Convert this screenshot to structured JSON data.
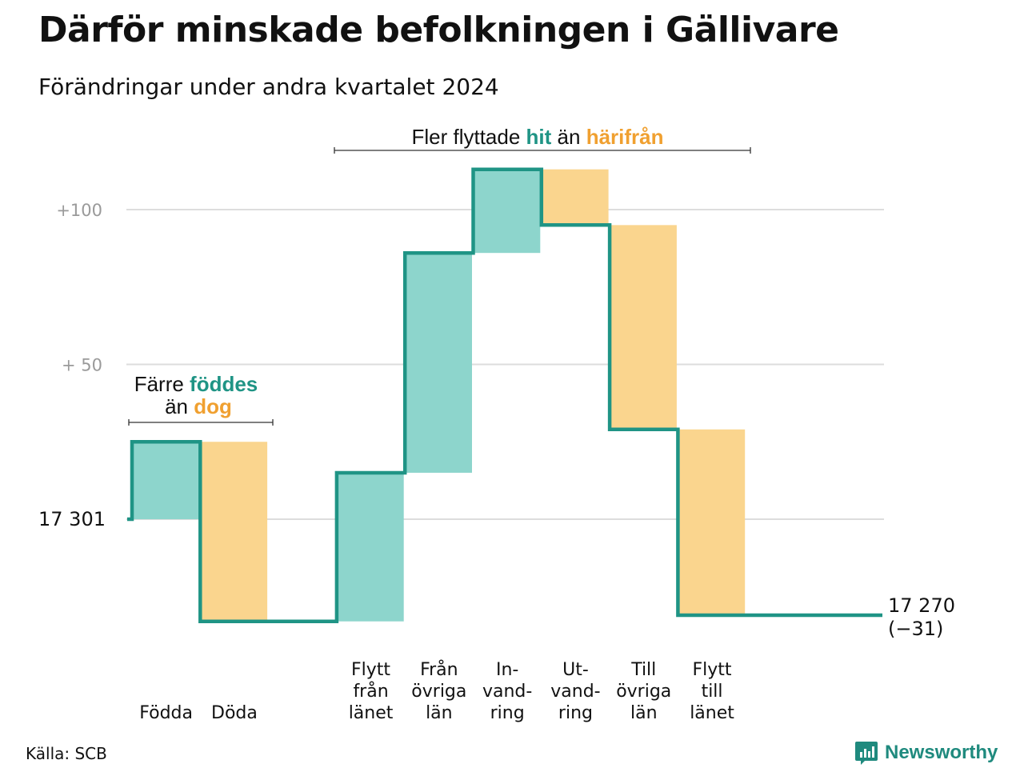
{
  "header": {
    "title": "Därför minskade befolkningen i Gällivare",
    "subtitle": "Förändringar under andra kvartalet 2024"
  },
  "colors": {
    "teal": "#1f9485",
    "teal_fill": "#8dd5cc",
    "orange": "#f0a030",
    "orange_fill": "#fad58e",
    "grid": "#dddddd",
    "axis_text": "#9a9a9a"
  },
  "chart_data": {
    "type": "waterfall",
    "start_value": 17301,
    "start_label": "17  301",
    "end_value": 17270,
    "end_label": "17 270",
    "end_change_label": "(−31)",
    "ylim": [
      -34,
      119
    ],
    "yticks": [
      {
        "value": 0,
        "label": ""
      },
      {
        "value": 50,
        "label": "+  50"
      },
      {
        "value": 100,
        "label": "+100"
      }
    ],
    "steps": [
      {
        "lines": [
          "Födda"
        ],
        "change": 25,
        "kind": "increase"
      },
      {
        "lines": [
          "Döda"
        ],
        "change": -58,
        "kind": "decrease"
      },
      {
        "lines": [],
        "change": 0,
        "kind": "gap"
      },
      {
        "lines": [
          "Flytt",
          "från",
          "länet"
        ],
        "change": 48,
        "kind": "increase"
      },
      {
        "lines": [
          "Från",
          "övriga",
          "län"
        ],
        "change": 71,
        "kind": "increase"
      },
      {
        "lines": [
          "In-",
          "vand-",
          "ring"
        ],
        "change": 27,
        "kind": "increase"
      },
      {
        "lines": [
          "Ut-",
          "vand-",
          "ring"
        ],
        "change": -18,
        "kind": "decrease"
      },
      {
        "lines": [
          "Till",
          "övriga",
          "län"
        ],
        "change": -66,
        "kind": "decrease"
      },
      {
        "lines": [
          "Flytt",
          "till",
          "länet"
        ],
        "change": -60,
        "kind": "decrease"
      }
    ],
    "annotations": {
      "births": {
        "line1_before": "Färre ",
        "line1_highlight": "föddes",
        "line2_before": "än ",
        "line2_highlight": "dog"
      },
      "migration": {
        "before": "Fler flyttade ",
        "highlight1": "hit",
        "middle": " än ",
        "highlight2": "härifrån"
      }
    }
  },
  "footer": {
    "source": "Källa: SCB",
    "brand": "Newsworthy",
    "brand_icon": "chart-bubble-icon"
  }
}
